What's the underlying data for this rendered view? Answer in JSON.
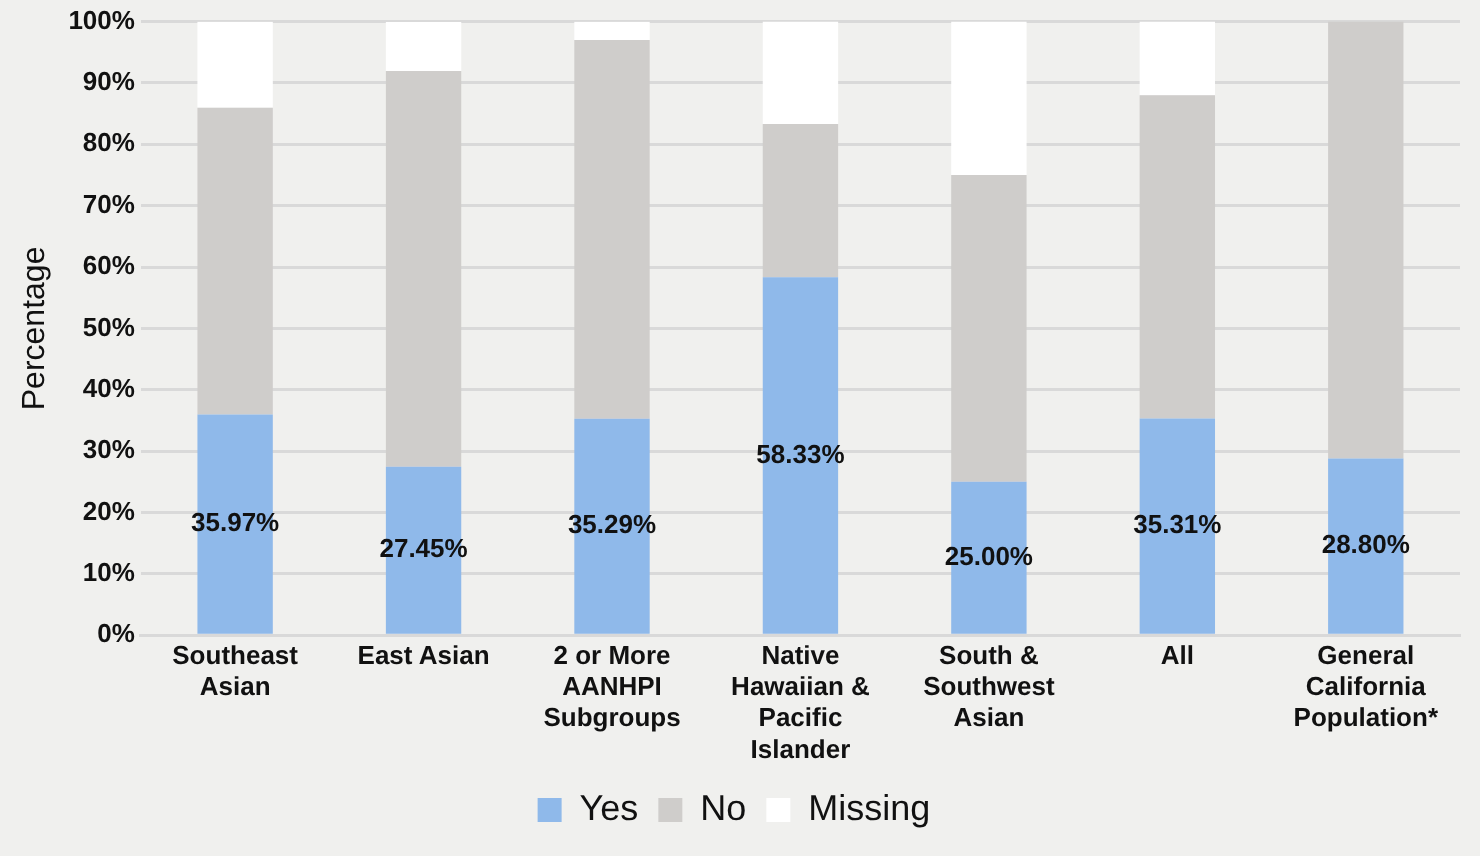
{
  "chart_data": {
    "type": "bar",
    "stacked": true,
    "ylabel": "Percentage",
    "categories": [
      "Southeast Asian",
      "East Asian",
      "2 or More AANHPI Subgroups",
      "Native Hawaiian & Pacific Islander",
      "South & Southwest Asian",
      "All",
      "General California Population*"
    ],
    "series": [
      {
        "name": "Yes",
        "color": "#8fb9ea",
        "values": [
          35.97,
          27.45,
          35.29,
          58.33,
          25.0,
          35.31,
          28.8
        ],
        "value_labels": [
          "35.97%",
          "27.45%",
          "35.29%",
          "58.33%",
          "25.00%",
          "35.31%",
          "28.80%"
        ]
      },
      {
        "name": "No",
        "color": "#cfcdcb",
        "values": [
          50,
          64.5,
          61.7,
          25,
          50,
          52.7,
          71.2
        ]
      },
      {
        "name": "Missing",
        "color": "#ffffff",
        "values": [
          14,
          8,
          3,
          16.67,
          25,
          12,
          0
        ]
      }
    ],
    "ylim": [
      0,
      100
    ],
    "yticks": [
      {
        "value": 0,
        "label": "0%"
      },
      {
        "value": 10,
        "label": "10%"
      },
      {
        "value": 20,
        "label": "20%"
      },
      {
        "value": 30,
        "label": "30%"
      },
      {
        "value": 40,
        "label": "40%"
      },
      {
        "value": 50,
        "label": "50%"
      },
      {
        "value": 60,
        "label": "60%"
      },
      {
        "value": 70,
        "label": "70%"
      },
      {
        "value": 80,
        "label": "80%"
      },
      {
        "value": 90,
        "label": "90%"
      },
      {
        "value": 100,
        "label": "100%"
      }
    ],
    "grid": "y",
    "legend": "bottom"
  }
}
